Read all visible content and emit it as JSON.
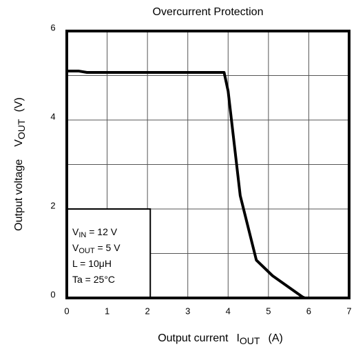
{
  "chart_data": {
    "type": "line",
    "title": "Overcurrent Protection",
    "x_label": {
      "text": "Output current",
      "symbol": "I",
      "sub": "OUT",
      "unit": "(A)"
    },
    "y_label": {
      "text": "Output voltage",
      "symbol": "V",
      "sub": "OUT",
      "unit": "(V)"
    },
    "x": [
      0,
      0.3,
      0.5,
      3.9,
      4.0,
      4.3,
      4.7,
      5.1,
      5.85,
      5.9
    ],
    "series": [
      {
        "color": "#000000",
        "values": [
          5.1,
          5.1,
          5.07,
          5.07,
          4.65,
          2.3,
          0.85,
          0.5,
          0.02,
          0
        ]
      }
    ],
    "xlim": [
      0,
      7
    ],
    "ylim": [
      0,
      6
    ],
    "xticks": [
      0,
      1,
      2,
      3,
      4,
      5,
      6,
      7
    ],
    "yticks": [
      0,
      2,
      4,
      6
    ],
    "y_gridlines": [
      1,
      2,
      3,
      4,
      5
    ],
    "grid": true,
    "annotation": [
      {
        "text": "V",
        "sub": "IN",
        "rest": " = 12 V"
      },
      {
        "text": "V",
        "sub": "OUT",
        "rest": " = 5 V"
      },
      {
        "text": "L = 10μH"
      },
      {
        "text": "Ta = 25°C"
      }
    ]
  }
}
